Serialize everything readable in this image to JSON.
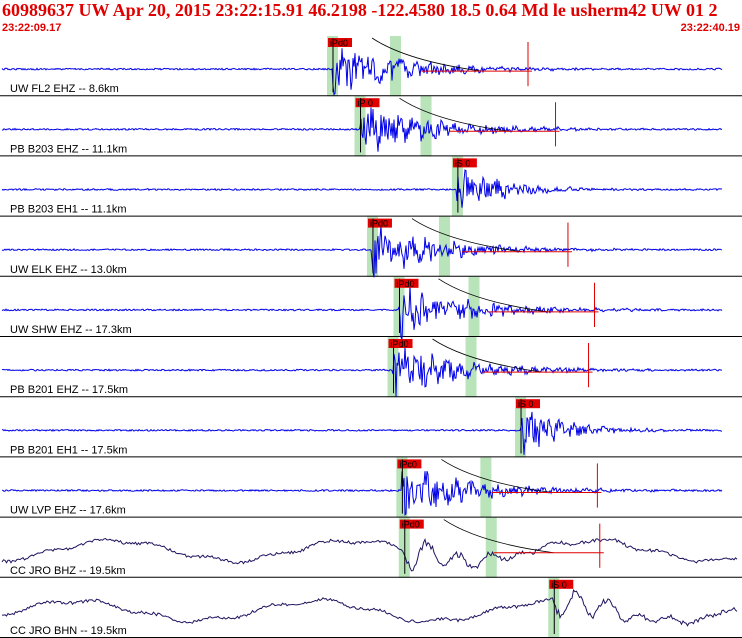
{
  "header": {
    "title": "60989637 UW Apr 20, 2015 23:22:15.91   46.2198 -122.4580 18.5 0.64 Md le usherm42 UW 01   2",
    "time_start": "23:22:09.17",
    "time_end": "23:22:40.19"
  },
  "colors": {
    "trace": "#0000e6",
    "trace_dark": "#1e1460",
    "pick_fill": "#e00000",
    "window_fill": "#b9e3b9",
    "synthetic": "#e00000",
    "header_text": "#e00000"
  },
  "traces": [
    {
      "label": "UW FL2 EHZ -- 8.6km",
      "picks": [
        {
          "text": "iPd0",
          "t": 23.05
        }
      ],
      "color": "blue"
    },
    {
      "label": "PB B203 EHZ -- 11.1km",
      "picks": [
        {
          "text": "iP 0",
          "t": 24.2
        }
      ],
      "color": "blue"
    },
    {
      "label": "PB B203 EH1 -- 11.1km",
      "picks": [
        {
          "text": "iS 0",
          "t": 28.27
        }
      ],
      "color": "blue"
    },
    {
      "label": "UW ELK EHZ -- 13.0km",
      "picks": [
        {
          "text": "iPd0",
          "t": 24.72
        }
      ],
      "color": "blue"
    },
    {
      "label": "UW SHW EHZ -- 17.3km",
      "picks": [
        {
          "text": "iPd0",
          "t": 25.83
        }
      ],
      "color": "blue"
    },
    {
      "label": "PB B201 EHZ -- 17.5km",
      "picks": [
        {
          "text": "iPd0",
          "t": 25.58
        }
      ],
      "color": "blue"
    },
    {
      "label": "PB B201 EH1 -- 17.5km",
      "picks": [
        {
          "text": "iS 0",
          "t": 30.91
        }
      ],
      "color": "blue"
    },
    {
      "label": "UW LVP EHZ -- 17.6km",
      "picks": [
        {
          "text": "iPc0",
          "t": 25.95
        }
      ],
      "color": "blue"
    },
    {
      "label": "CC JRO BHZ -- 19.5km",
      "picks": [
        {
          "text": "iPd0",
          "t": 26.05
        }
      ],
      "color": "dark"
    },
    {
      "label": "CC JRO BHN -- 19.5km",
      "picks": [
        {
          "text": "iS 0",
          "t": 32.3
        }
      ],
      "color": "dark"
    }
  ]
}
